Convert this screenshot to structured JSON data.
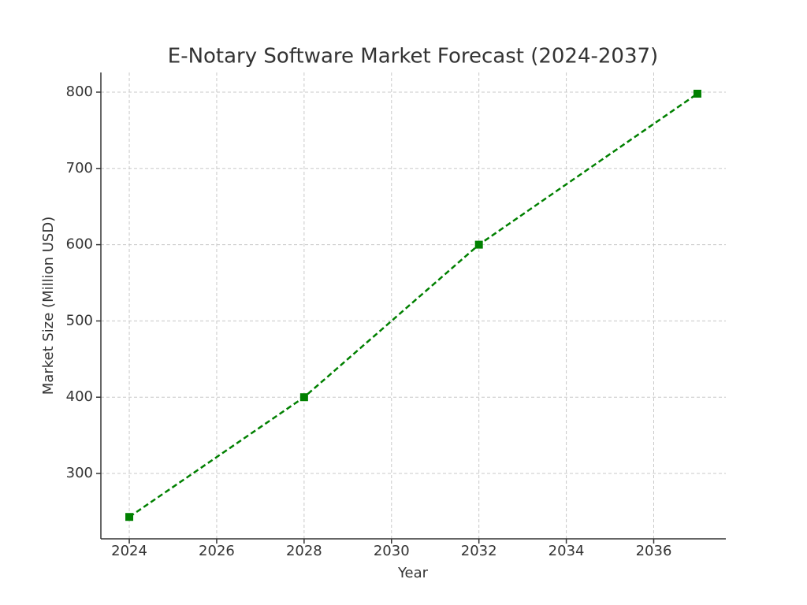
{
  "chart_data": {
    "type": "line",
    "title": "E-Notary Software Market Forecast (2024-2037)",
    "x_label": "Year",
    "y_label": "Market Size (Million USD)",
    "x": [
      2024,
      2028,
      2032,
      2037
    ],
    "values": [
      243,
      400,
      600,
      798
    ],
    "color": "#008000",
    "line_style": "dashed",
    "marker": "square",
    "xlim": [
      2023.35,
      2037.65
    ],
    "xticks": [
      2024,
      2026,
      2028,
      2030,
      2032,
      2034,
      2036
    ],
    "ylim": [
      214.3,
      825.8
    ],
    "yticks": [
      300,
      400,
      500,
      600,
      700,
      800
    ],
    "grid": true
  }
}
